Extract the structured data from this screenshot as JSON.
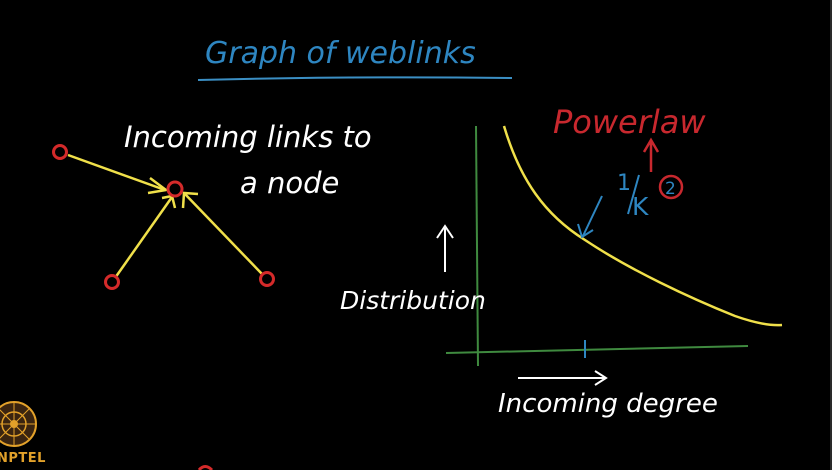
{
  "title": "Graph of weblinks",
  "node_caption": {
    "line1": "Incoming links to",
    "line2": "a node"
  },
  "y_axis_label": "Distribution",
  "x_axis_label": "Incoming degree",
  "annotation": {
    "label": "Powerlaw",
    "formula_numerator": "1",
    "formula_base": "K",
    "formula_exponent": "2"
  },
  "logo": {
    "text": "NPTEL",
    "icon": "nptel-logo-icon"
  },
  "colors": {
    "background": "#000000",
    "title": "#2e86c1",
    "title_underline": "#3b8fc4",
    "text": "#ffffff",
    "node_outline": "#d42a2a",
    "edge": "#f0e04a",
    "axes": "#3f8a3f",
    "curve": "#f0e04a",
    "annotation": "#c8282e",
    "formula": "#2e86c1",
    "logo": "#e2a12a"
  },
  "chart_data": {
    "type": "line",
    "title": "",
    "xlabel": "Incoming degree",
    "ylabel": "Distribution",
    "series": [
      {
        "name": "",
        "shape": "1/K^2"
      }
    ],
    "grid": false
  }
}
